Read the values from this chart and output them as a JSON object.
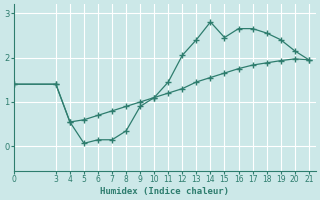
{
  "xlabel": "Humidex (Indice chaleur)",
  "bg_color": "#cce8e8",
  "line_color": "#2e7d6e",
  "grid_color": "#ffffff",
  "xlim": [
    0,
    21.5
  ],
  "ylim": [
    -0.55,
    3.2
  ],
  "xticks": [
    0,
    3,
    4,
    5,
    6,
    7,
    8,
    9,
    10,
    11,
    12,
    13,
    14,
    15,
    16,
    17,
    18,
    19,
    20,
    21
  ],
  "yticks": [
    0,
    1,
    2,
    3
  ],
  "line1_x": [
    0,
    3,
    4,
    5,
    6,
    7,
    8,
    9,
    10,
    11,
    12,
    13,
    14,
    15,
    16,
    17,
    18,
    19,
    20,
    21
  ],
  "line1_y": [
    1.4,
    1.4,
    0.55,
    0.07,
    0.15,
    0.15,
    0.35,
    0.9,
    1.1,
    1.45,
    2.05,
    2.4,
    2.8,
    2.45,
    2.65,
    2.65,
    2.55,
    2.4,
    2.15,
    1.95
  ],
  "line2_x": [
    0,
    3,
    4,
    5,
    6,
    7,
    8,
    9,
    10,
    11,
    12,
    13,
    14,
    15,
    16,
    17,
    18,
    19,
    20,
    21
  ],
  "line2_y": [
    1.4,
    1.4,
    0.55,
    0.6,
    0.7,
    0.8,
    0.9,
    1.0,
    1.1,
    1.2,
    1.3,
    1.45,
    1.55,
    1.65,
    1.75,
    1.83,
    1.88,
    1.93,
    1.97,
    1.95
  ],
  "marker": "+",
  "markersize": 4,
  "markeredgewidth": 1.0,
  "linewidth": 0.9
}
